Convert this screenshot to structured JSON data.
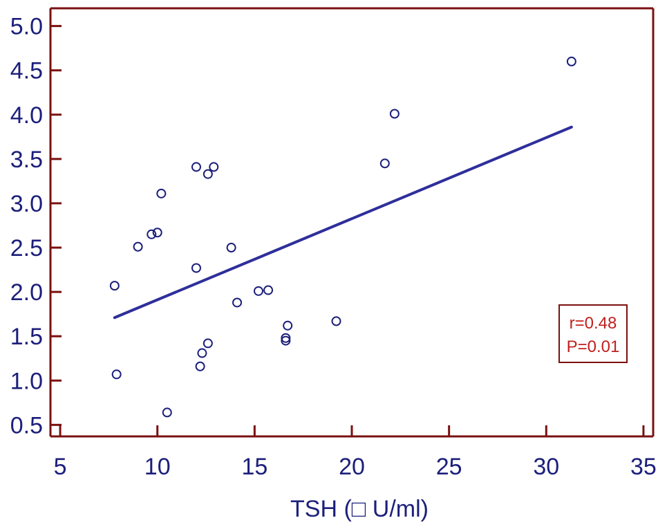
{
  "chart_data": {
    "type": "scatter",
    "title": "",
    "xlabel": "TSH (□ U/ml)",
    "ylabel": "",
    "xlim": [
      4.5,
      35.5
    ],
    "ylim": [
      0.37,
      5.2
    ],
    "xticks": [
      5,
      10,
      15,
      20,
      25,
      30,
      35
    ],
    "xtick_labels": [
      "5",
      "10",
      "15",
      "20",
      "25",
      "30",
      "35"
    ],
    "yticks": [
      0.5,
      1.0,
      1.5,
      2.0,
      2.5,
      3.0,
      3.5,
      4.0,
      4.5,
      5.0
    ],
    "ytick_labels": [
      "0.5",
      "1.0",
      "1.5",
      "2.0",
      "2.5",
      "3.0",
      "3.5",
      "4.0",
      "4.5",
      "5.0"
    ],
    "grid": false,
    "points": [
      {
        "x": 7.8,
        "y": 2.07
      },
      {
        "x": 7.9,
        "y": 1.07
      },
      {
        "x": 9.0,
        "y": 2.51
      },
      {
        "x": 9.7,
        "y": 2.65
      },
      {
        "x": 10.0,
        "y": 2.67
      },
      {
        "x": 10.2,
        "y": 3.11
      },
      {
        "x": 10.5,
        "y": 0.64
      },
      {
        "x": 12.0,
        "y": 3.41
      },
      {
        "x": 12.0,
        "y": 2.27
      },
      {
        "x": 12.2,
        "y": 1.16
      },
      {
        "x": 12.3,
        "y": 1.31
      },
      {
        "x": 12.6,
        "y": 1.42
      },
      {
        "x": 12.6,
        "y": 3.33
      },
      {
        "x": 12.9,
        "y": 3.41
      },
      {
        "x": 13.8,
        "y": 2.5
      },
      {
        "x": 14.1,
        "y": 1.88
      },
      {
        "x": 15.2,
        "y": 2.01
      },
      {
        "x": 15.7,
        "y": 2.02
      },
      {
        "x": 16.6,
        "y": 1.45
      },
      {
        "x": 16.6,
        "y": 1.48
      },
      {
        "x": 16.7,
        "y": 1.62
      },
      {
        "x": 19.2,
        "y": 1.67
      },
      {
        "x": 21.7,
        "y": 3.45
      },
      {
        "x": 22.2,
        "y": 4.01
      },
      {
        "x": 31.3,
        "y": 4.6
      }
    ],
    "trendline": {
      "x": [
        7.8,
        31.3
      ],
      "y": [
        1.71,
        3.86
      ]
    },
    "annotation": {
      "lines": [
        "r=0.48",
        "P=0.01"
      ],
      "position": "bottom-right"
    },
    "colors": {
      "axis": "#7a1010",
      "tick_text": "#1c1f7a",
      "points": "#1c1f7a",
      "trendline": "#2e2f9a",
      "annotation": "#c0201e"
    }
  }
}
